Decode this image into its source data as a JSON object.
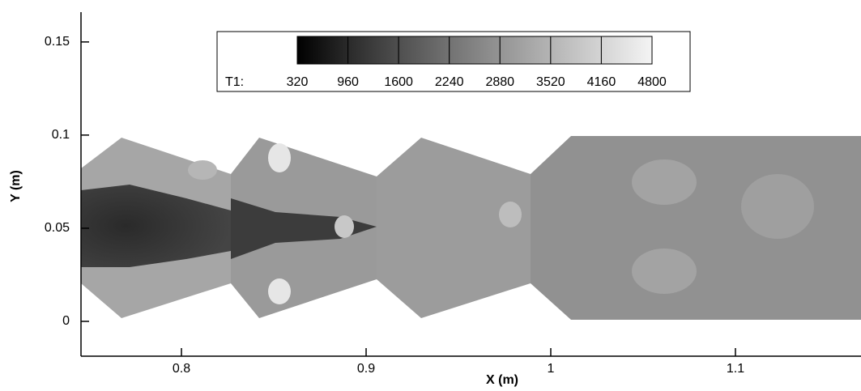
{
  "chart_data": {
    "type": "contour",
    "xlabel": "X (m)",
    "ylabel": "Y (m)",
    "xlim": [
      0.7456,
      1.168
    ],
    "ylim": [
      -0.0187,
      0.166
    ],
    "xticks": [
      0.8,
      0.9,
      1,
      1.1
    ],
    "yticks": [
      0,
      0.05,
      0.1,
      0.15
    ],
    "colorbar": {
      "label": "T1:",
      "levels": [
        320,
        960,
        1600,
        2240,
        2880,
        3520,
        4160,
        4800
      ],
      "colors": [
        "#000000",
        "#2a2a2a",
        "#4f4f4f",
        "#727272",
        "#949494",
        "#b4b4b4",
        "#d4d4d4",
        "#f4f4f4"
      ]
    }
  }
}
